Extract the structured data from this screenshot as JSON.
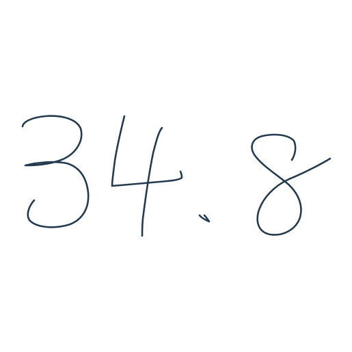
{
  "handwritten_text": "34.8",
  "characters": [
    "3",
    "4",
    ".",
    "8"
  ],
  "colors": {
    "background": "#ffffff",
    "ink": "#233a4f"
  }
}
